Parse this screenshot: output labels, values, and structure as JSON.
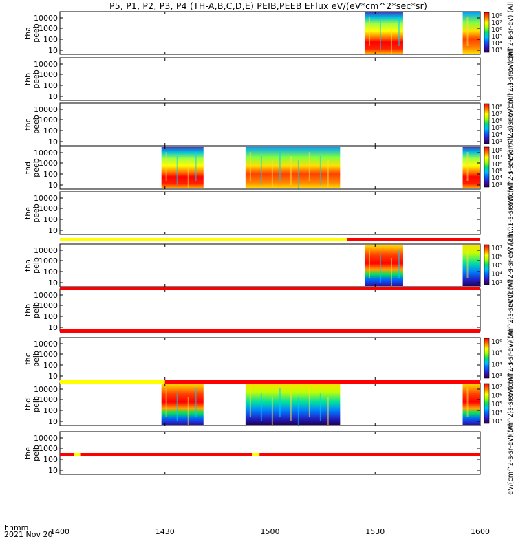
{
  "title": "P5, P1, P2, P3, P4 (TH-A,B,C,D,E) PEIB,PEEB EFlux eV/(eV*cm^2*sec*sr)",
  "footer": {
    "hhmm": "hhmm",
    "date": "2021 Nov 20"
  },
  "chart_data": {
    "type": "heatmap",
    "x_ticks": [
      "1400",
      "1430",
      "1500",
      "1530",
      "1600"
    ],
    "x_range": [
      "14:00",
      "16:00"
    ],
    "y_ticks": [
      "10000",
      "1000",
      "100",
      "10"
    ],
    "y_scale": "log",
    "panels": [
      {
        "probe": "tha",
        "species": "peeb",
        "ylabel": [
          "tha",
          "peeb"
        ],
        "data_intervals": [
          [
            "15:27",
            "15:38"
          ],
          [
            "15:55",
            "16:00"
          ]
        ],
        "colorbar": {
          "ticks": [
            "10^8",
            "10^7",
            "10^6",
            "10^5",
            "10^4",
            "10^3"
          ],
          "label": "eV/(cm^2-s-sr-eV) (All ...)"
        }
      },
      {
        "probe": "thb",
        "species": "peeb",
        "ylabel": [
          "thb",
          "peeb"
        ],
        "data_intervals": [],
        "colorbar": {
          "label": "eV/(cm^2-s-sr-eV) (All ...)"
        }
      },
      {
        "probe": "thc",
        "species": "peeb",
        "ylabel": [
          "thc",
          "peeb"
        ],
        "data_intervals": [],
        "colorbar": {
          "ticks": [
            "10^8",
            "10^7",
            "10^6",
            "10^5",
            "10^4",
            "10^3"
          ],
          "label": "eV/(cm^2-s-sr-eV) (All ...)"
        }
      },
      {
        "probe": "thd",
        "species": "peeb",
        "ylabel": [
          "thd",
          "peeb"
        ],
        "data_intervals": [
          [
            "14:29",
            "14:41"
          ],
          [
            "14:53",
            "15:20"
          ],
          [
            "15:55",
            "16:00"
          ]
        ],
        "colorbar": {
          "ticks": [
            "10^8",
            "10^7",
            "10^6",
            "10^5",
            "10^4",
            "10^3"
          ],
          "label": "eV/(cm^2-s-sr-eV) (All ...)"
        }
      },
      {
        "probe": "the",
        "species": "peeb",
        "ylabel": [
          "the",
          "peeb"
        ],
        "data_intervals": [],
        "colorbar": {
          "label": "eV/(cm^2-s-sr-eV) (All ...)"
        }
      },
      {
        "probe": "tha",
        "species": "peib",
        "ylabel": [
          "tha",
          "peib"
        ],
        "data_intervals": [
          [
            "15:27",
            "15:38"
          ],
          [
            "15:55",
            "16:00"
          ]
        ],
        "colorbar": {
          "ticks": [
            "10^7",
            "10^6",
            "10^5",
            "10^4",
            "10^3"
          ],
          "label": "eV/(cm^2-s-sr-eV) (All ...)"
        }
      },
      {
        "probe": "thb",
        "species": "peib",
        "ylabel": [
          "thb",
          "peib"
        ],
        "data_intervals": [],
        "colorbar": {
          "label": "eV/(cm^2-s-sr-eV) (All ...)"
        }
      },
      {
        "probe": "thc",
        "species": "peib",
        "ylabel": [
          "thc",
          "peib"
        ],
        "data_intervals": [],
        "colorbar": {
          "ticks": [
            "10^6",
            "10^5",
            "10^4",
            "10^3"
          ],
          "label": "eV/(cm^2-s-sr-eV) (All ...)"
        }
      },
      {
        "probe": "thd",
        "species": "peib",
        "ylabel": [
          "thd",
          "peib"
        ],
        "data_intervals": [
          [
            "14:29",
            "14:41"
          ],
          [
            "14:53",
            "15:20"
          ],
          [
            "15:55",
            "16:00"
          ]
        ],
        "colorbar": {
          "ticks": [
            "10^7",
            "10^6",
            "10^5",
            "10^4",
            "10^3"
          ],
          "label": "eV/(cm^2-s-sr-eV) (All ...)"
        }
      },
      {
        "probe": "the",
        "species": "peib",
        "ylabel": [
          "the",
          "peib"
        ],
        "data_intervals": [],
        "colorbar": {
          "label": "eV/(cm^2-s-sr-eV) (All ...)"
        }
      }
    ],
    "mode_bars": [
      {
        "after_panel": 4,
        "segments": [
          [
            "14:00",
            "15:22",
            "yellow"
          ],
          [
            "15:22",
            "16:00",
            "red"
          ]
        ]
      },
      {
        "after_panel": 5,
        "segments": [
          [
            "14:00",
            "16:00",
            "red"
          ]
        ]
      },
      {
        "after_panel": 6,
        "segments": [
          [
            "14:00",
            "16:00",
            "red"
          ]
        ]
      },
      {
        "after_panel": 7,
        "segments": [
          [
            "14:00",
            "14:30",
            "yellow"
          ],
          [
            "14:30",
            "16:00",
            "red"
          ]
        ]
      },
      {
        "after_panel": 8,
        "segments": [
          [
            "14:00",
            "14:04",
            "red"
          ],
          [
            "14:04",
            "14:06",
            "yellow"
          ],
          [
            "14:06",
            "14:55",
            "red"
          ],
          [
            "14:55",
            "14:57",
            "yellow"
          ],
          [
            "14:57",
            "16:00",
            "red"
          ]
        ]
      }
    ],
    "colors": {
      "mode_red": "#ff0000",
      "mode_yellow": "#ffff00"
    }
  }
}
